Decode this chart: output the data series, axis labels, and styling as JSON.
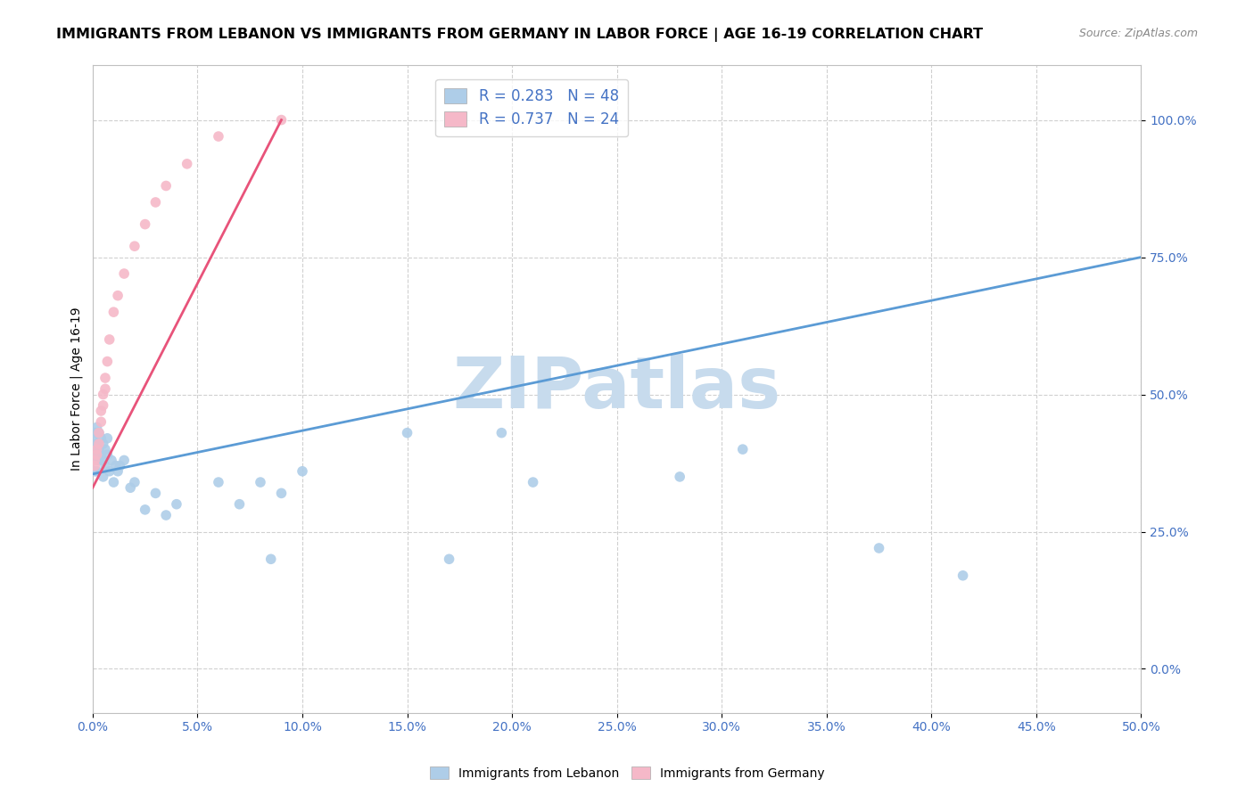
{
  "title": "IMMIGRANTS FROM LEBANON VS IMMIGRANTS FROM GERMANY IN LABOR FORCE | AGE 16-19 CORRELATION CHART",
  "source": "Source: ZipAtlas.com",
  "ylabel": "In Labor Force | Age 16-19",
  "xlim": [
    0.0,
    0.5
  ],
  "ylim": [
    -0.08,
    1.1
  ],
  "xtick_vals": [
    0.0,
    0.05,
    0.1,
    0.15,
    0.2,
    0.25,
    0.3,
    0.35,
    0.4,
    0.45,
    0.5
  ],
  "ytick_vals": [
    0.0,
    0.25,
    0.5,
    0.75,
    1.0
  ],
  "lebanon_color": "#aecde8",
  "germany_color": "#f5b8c8",
  "lebanon_line_color": "#5b9bd5",
  "germany_line_color": "#e8537a",
  "R_lebanon": 0.283,
  "N_lebanon": 48,
  "R_germany": 0.737,
  "N_germany": 24,
  "watermark": "ZIPatlas",
  "watermark_color_r": 0.78,
  "watermark_color_g": 0.86,
  "watermark_color_b": 0.93,
  "tick_color": "#4472c4",
  "background_color": "#ffffff",
  "grid_color": "#d0d0d0",
  "title_fontsize": 11.5,
  "source_fontsize": 9,
  "axis_label_fontsize": 10,
  "tick_fontsize": 10,
  "legend_fontsize": 12,
  "watermark_fontsize": 58,
  "lebanon_x": [
    0.001,
    0.001,
    0.001,
    0.001,
    0.001,
    0.002,
    0.002,
    0.002,
    0.002,
    0.003,
    0.003,
    0.003,
    0.004,
    0.004,
    0.005,
    0.005,
    0.005,
    0.006,
    0.006,
    0.007,
    0.007,
    0.008,
    0.009,
    0.01,
    0.011,
    0.012,
    0.013,
    0.015,
    0.018,
    0.02,
    0.025,
    0.03,
    0.035,
    0.04,
    0.06,
    0.07,
    0.08,
    0.085,
    0.09,
    0.1,
    0.15,
    0.17,
    0.195,
    0.21,
    0.28,
    0.31,
    0.375,
    0.415
  ],
  "lebanon_y": [
    0.42,
    0.43,
    0.4,
    0.38,
    0.36,
    0.44,
    0.41,
    0.39,
    0.36,
    0.43,
    0.4,
    0.38,
    0.42,
    0.39,
    0.41,
    0.38,
    0.35,
    0.4,
    0.37,
    0.42,
    0.39,
    0.36,
    0.38,
    0.34,
    0.37,
    0.36,
    0.37,
    0.38,
    0.33,
    0.34,
    0.29,
    0.32,
    0.28,
    0.3,
    0.34,
    0.3,
    0.34,
    0.2,
    0.32,
    0.36,
    0.43,
    0.2,
    0.43,
    0.34,
    0.35,
    0.4,
    0.22,
    0.17
  ],
  "germany_x": [
    0.001,
    0.001,
    0.002,
    0.002,
    0.003,
    0.003,
    0.004,
    0.004,
    0.005,
    0.005,
    0.006,
    0.006,
    0.007,
    0.008,
    0.01,
    0.012,
    0.015,
    0.02,
    0.025,
    0.03,
    0.035,
    0.045,
    0.06,
    0.09
  ],
  "germany_y": [
    0.38,
    0.37,
    0.4,
    0.39,
    0.43,
    0.41,
    0.47,
    0.45,
    0.5,
    0.48,
    0.53,
    0.51,
    0.56,
    0.6,
    0.65,
    0.68,
    0.72,
    0.77,
    0.81,
    0.85,
    0.88,
    0.92,
    0.97,
    1.0
  ],
  "leb_line_x0": 0.0,
  "leb_line_x1": 0.5,
  "leb_line_y0": 0.355,
  "leb_line_y1": 0.75,
  "ger_line_x0": 0.0,
  "ger_line_x1": 0.09,
  "ger_line_y0": 0.33,
  "ger_line_y1": 1.0
}
